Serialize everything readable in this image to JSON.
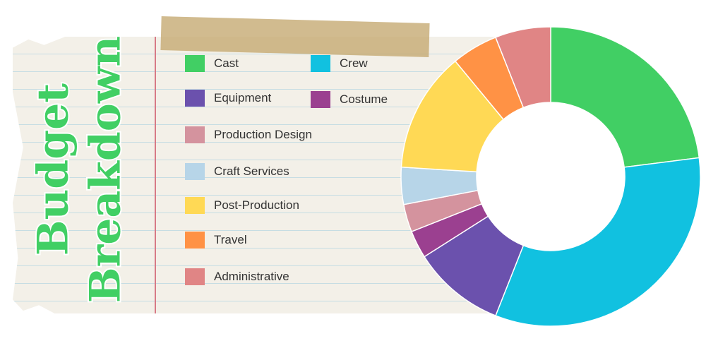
{
  "title": "Budget Breakdown",
  "chart_data": {
    "type": "donut",
    "title": "Budget Breakdown",
    "legend_position": "left",
    "start_angle": "top, clockwise",
    "slices": [
      {
        "label": "Cast",
        "value": 23,
        "color": "#41cf64"
      },
      {
        "label": "Crew",
        "value": 33,
        "color": "#11c1e0"
      },
      {
        "label": "Equipment",
        "value": 10,
        "color": "#6b51ad"
      },
      {
        "label": "Costume",
        "value": 3,
        "color": "#9b4090"
      },
      {
        "label": "Production Design",
        "value": 3,
        "color": "#d4939e"
      },
      {
        "label": "Craft Services",
        "value": 4,
        "color": "#b7d5e8"
      },
      {
        "label": "Post-Production",
        "value": 13,
        "color": "#ffd955"
      },
      {
        "label": "Travel",
        "value": 5,
        "color": "#ff9245"
      },
      {
        "label": "Administrative",
        "value": 6,
        "color": "#e08585"
      }
    ]
  }
}
